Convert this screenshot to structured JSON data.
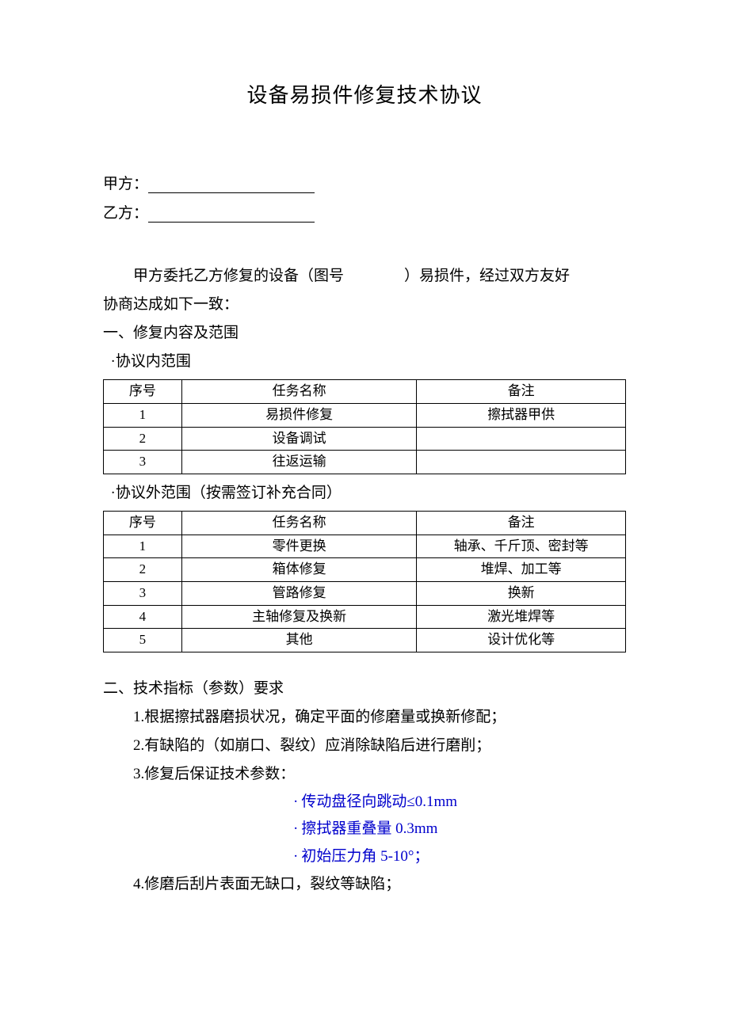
{
  "title": "设备易损件修复技术协议",
  "partyA_label": "甲方：",
  "partyB_label": "乙方：",
  "intro_part1": "甲方委托乙方修复的设备（图号",
  "intro_part2": "）易损件，经过双方友好",
  "intro_line2": "协商达成如下一致：",
  "section1_heading": "一、修复内容及范围",
  "scope_in_label": "·协议内范围",
  "scope_out_label": "·协议外范围（按需签订补充合同）",
  "table_headers": {
    "seq": "序号",
    "task": "任务名称",
    "note": "备注"
  },
  "scope_in_rows": [
    {
      "seq": "1",
      "task": "易损件修复",
      "note": "擦拭器甲供"
    },
    {
      "seq": "2",
      "task": "设备调试",
      "note": ""
    },
    {
      "seq": "3",
      "task": "往返运输",
      "note": ""
    }
  ],
  "scope_out_rows": [
    {
      "seq": "1",
      "task": "零件更换",
      "note": "轴承、千斤顶、密封等"
    },
    {
      "seq": "2",
      "task": "箱体修复",
      "note": "堆焊、加工等"
    },
    {
      "seq": "3",
      "task": "管路修复",
      "note": "换新"
    },
    {
      "seq": "4",
      "task": "主轴修复及换新",
      "note": "激光堆焊等"
    },
    {
      "seq": "5",
      "task": "其他",
      "note": "设计优化等"
    }
  ],
  "section2_heading": "二、技术指标（参数）要求",
  "reqs": {
    "r1": "1.根据擦拭器磨损状况，确定平面的修磨量或换新修配；",
    "r2": "2.有缺陷的（如崩口、裂纹）应消除缺陷后进行磨削；",
    "r3": "3.修复后保证技术参数：",
    "r4": "4.修磨后刮片表面无缺口，裂纹等缺陷；"
  },
  "params": {
    "p1": "传动盘径向跳动≤0.1mm",
    "p2": "擦拭器重叠量 0.3mm",
    "p3": "初始压力角 5-10°；"
  },
  "colors": {
    "text": "#000000",
    "param_text": "#0000cc",
    "background": "#ffffff",
    "border": "#000000"
  }
}
